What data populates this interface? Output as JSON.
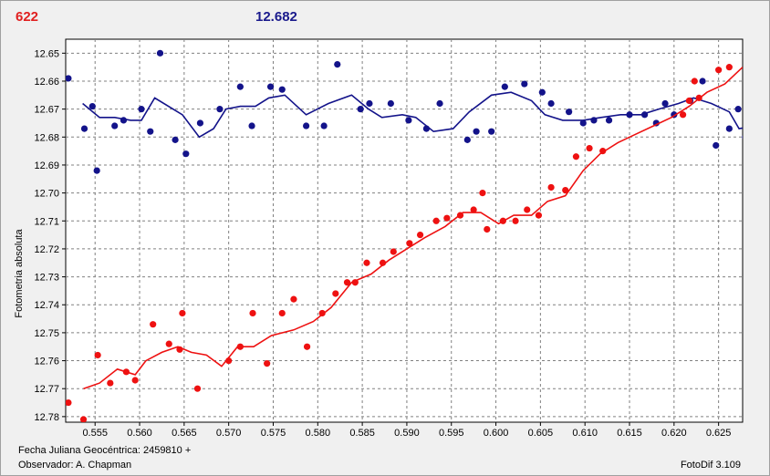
{
  "header": {
    "left_value": "622",
    "right_value": "12.682"
  },
  "footer": {
    "date_label": "Fecha Juliana Geocéntrica: 2459810 +",
    "observer_label": "Observador: A. Chapman",
    "version_label": "FotoDif 3.109"
  },
  "colors": {
    "series_red": "#ee1111",
    "series_blue": "#13138a",
    "background": "#ffffff",
    "grid": "#808080"
  },
  "chart_data": {
    "type": "scatter",
    "ylabel": "Fotometria absoluta",
    "xlabel": "",
    "xlim": [
      0.5517,
      0.6277
    ],
    "ylim": [
      12.645,
      12.782
    ],
    "y_inverted": true,
    "grid": true,
    "x_ticks": [
      "0.555",
      "0.560",
      "0.565",
      "0.570",
      "0.575",
      "0.580",
      "0.585",
      "0.590",
      "0.595",
      "0.600",
      "0.605",
      "0.610",
      "0.615",
      "0.620",
      "0.625"
    ],
    "y_ticks": [
      "12.65",
      "12.66",
      "12.67",
      "12.68",
      "12.69",
      "12.70",
      "12.71",
      "12.72",
      "12.73",
      "12.74",
      "12.75",
      "12.76",
      "12.77",
      "12.78"
    ],
    "series": [
      {
        "color": "#13138a",
        "points": [
          [
            0.552,
            12.659
          ],
          [
            0.5538,
            12.677
          ],
          [
            0.5547,
            12.669
          ],
          [
            0.5552,
            12.692
          ],
          [
            0.5572,
            12.676
          ],
          [
            0.5582,
            12.674
          ],
          [
            0.5602,
            12.67
          ],
          [
            0.5612,
            12.678
          ],
          [
            0.5623,
            12.65
          ],
          [
            0.564,
            12.681
          ],
          [
            0.5652,
            12.686
          ],
          [
            0.5668,
            12.675
          ],
          [
            0.569,
            12.67
          ],
          [
            0.5713,
            12.662
          ],
          [
            0.5726,
            12.676
          ],
          [
            0.5747,
            12.662
          ],
          [
            0.576,
            12.663
          ],
          [
            0.5787,
            12.676
          ],
          [
            0.5807,
            12.676
          ],
          [
            0.5822,
            12.654
          ],
          [
            0.5848,
            12.67
          ],
          [
            0.5858,
            12.668
          ],
          [
            0.5882,
            12.668
          ],
          [
            0.5902,
            12.674
          ],
          [
            0.5922,
            12.677
          ],
          [
            0.5937,
            12.668
          ],
          [
            0.5968,
            12.681
          ],
          [
            0.5978,
            12.678
          ],
          [
            0.5995,
            12.678
          ],
          [
            0.601,
            12.662
          ],
          [
            0.6032,
            12.661
          ],
          [
            0.6052,
            12.664
          ],
          [
            0.6062,
            12.668
          ],
          [
            0.6082,
            12.671
          ],
          [
            0.6098,
            12.675
          ],
          [
            0.611,
            12.674
          ],
          [
            0.6127,
            12.674
          ],
          [
            0.615,
            12.672
          ],
          [
            0.6167,
            12.672
          ],
          [
            0.618,
            12.675
          ],
          [
            0.619,
            12.668
          ],
          [
            0.62,
            12.672
          ],
          [
            0.6218,
            12.667
          ],
          [
            0.6232,
            12.66
          ],
          [
            0.6247,
            12.683
          ],
          [
            0.6262,
            12.677
          ],
          [
            0.6272,
            12.67
          ],
          [
            0.628,
            12.68
          ]
        ],
        "trend": [
          [
            0.5536,
            12.668
          ],
          [
            0.5555,
            12.673
          ],
          [
            0.5572,
            12.673
          ],
          [
            0.559,
            12.674
          ],
          [
            0.5602,
            12.674
          ],
          [
            0.5617,
            12.666
          ],
          [
            0.5648,
            12.672
          ],
          [
            0.5667,
            12.68
          ],
          [
            0.5683,
            12.677
          ],
          [
            0.5697,
            12.67
          ],
          [
            0.5713,
            12.669
          ],
          [
            0.573,
            12.669
          ],
          [
            0.5745,
            12.666
          ],
          [
            0.5763,
            12.665
          ],
          [
            0.5787,
            12.672
          ],
          [
            0.5812,
            12.668
          ],
          [
            0.5838,
            12.665
          ],
          [
            0.5857,
            12.67
          ],
          [
            0.5872,
            12.673
          ],
          [
            0.5895,
            12.672
          ],
          [
            0.591,
            12.673
          ],
          [
            0.593,
            12.678
          ],
          [
            0.5952,
            12.677
          ],
          [
            0.597,
            12.671
          ],
          [
            0.5995,
            12.665
          ],
          [
            0.6017,
            12.664
          ],
          [
            0.604,
            12.667
          ],
          [
            0.6055,
            12.672
          ],
          [
            0.6075,
            12.674
          ],
          [
            0.6098,
            12.674
          ],
          [
            0.6118,
            12.673
          ],
          [
            0.614,
            12.672
          ],
          [
            0.6163,
            12.672
          ],
          [
            0.6183,
            12.67
          ],
          [
            0.6205,
            12.668
          ],
          [
            0.6222,
            12.666
          ],
          [
            0.6242,
            12.668
          ],
          [
            0.6262,
            12.671
          ],
          [
            0.6273,
            12.677
          ],
          [
            0.6292,
            12.676
          ]
        ]
      },
      {
        "color": "#ee1111",
        "points": [
          [
            0.552,
            12.775
          ],
          [
            0.5537,
            12.781
          ],
          [
            0.5553,
            12.758
          ],
          [
            0.5567,
            12.768
          ],
          [
            0.5585,
            12.764
          ],
          [
            0.5595,
            12.767
          ],
          [
            0.5615,
            12.747
          ],
          [
            0.5633,
            12.754
          ],
          [
            0.5645,
            12.756
          ],
          [
            0.5648,
            12.743
          ],
          [
            0.5665,
            12.77
          ],
          [
            0.57,
            12.76
          ],
          [
            0.5713,
            12.755
          ],
          [
            0.5727,
            12.743
          ],
          [
            0.5743,
            12.761
          ],
          [
            0.576,
            12.743
          ],
          [
            0.5773,
            12.738
          ],
          [
            0.5788,
            12.755
          ],
          [
            0.5805,
            12.743
          ],
          [
            0.582,
            12.736
          ],
          [
            0.5833,
            12.732
          ],
          [
            0.5842,
            12.732
          ],
          [
            0.5855,
            12.725
          ],
          [
            0.5873,
            12.725
          ],
          [
            0.5885,
            12.721
          ],
          [
            0.5903,
            12.718
          ],
          [
            0.5915,
            12.715
          ],
          [
            0.5933,
            12.71
          ],
          [
            0.5945,
            12.709
          ],
          [
            0.596,
            12.708
          ],
          [
            0.5975,
            12.706
          ],
          [
            0.5985,
            12.7
          ],
          [
            0.599,
            12.713
          ],
          [
            0.6008,
            12.71
          ],
          [
            0.6022,
            12.71
          ],
          [
            0.6035,
            12.706
          ],
          [
            0.6048,
            12.708
          ],
          [
            0.6062,
            12.698
          ],
          [
            0.6078,
            12.699
          ],
          [
            0.609,
            12.687
          ],
          [
            0.6105,
            12.684
          ],
          [
            0.612,
            12.685
          ],
          [
            0.621,
            12.672
          ],
          [
            0.6217,
            12.667
          ],
          [
            0.6223,
            12.66
          ],
          [
            0.6228,
            12.666
          ],
          [
            0.625,
            12.656
          ],
          [
            0.6262,
            12.655
          ]
        ],
        "trend": [
          [
            0.5537,
            12.77
          ],
          [
            0.5555,
            12.768
          ],
          [
            0.5575,
            12.763
          ],
          [
            0.5595,
            12.765
          ],
          [
            0.5607,
            12.76
          ],
          [
            0.5625,
            12.757
          ],
          [
            0.5643,
            12.755
          ],
          [
            0.5658,
            12.757
          ],
          [
            0.5675,
            12.758
          ],
          [
            0.5692,
            12.762
          ],
          [
            0.571,
            12.755
          ],
          [
            0.5728,
            12.755
          ],
          [
            0.5748,
            12.751
          ],
          [
            0.5773,
            12.749
          ],
          [
            0.5795,
            12.746
          ],
          [
            0.5815,
            12.741
          ],
          [
            0.5838,
            12.732
          ],
          [
            0.586,
            12.729
          ],
          [
            0.588,
            12.724
          ],
          [
            0.59,
            12.72
          ],
          [
            0.592,
            12.716
          ],
          [
            0.5943,
            12.712
          ],
          [
            0.5963,
            12.707
          ],
          [
            0.5983,
            12.707
          ],
          [
            0.6003,
            12.711
          ],
          [
            0.602,
            12.708
          ],
          [
            0.604,
            12.708
          ],
          [
            0.6058,
            12.703
          ],
          [
            0.6078,
            12.701
          ],
          [
            0.6098,
            12.692
          ],
          [
            0.6117,
            12.686
          ],
          [
            0.6137,
            12.682
          ],
          [
            0.6157,
            12.679
          ],
          [
            0.6177,
            12.676
          ],
          [
            0.6197,
            12.673
          ],
          [
            0.6217,
            12.669
          ],
          [
            0.6237,
            12.664
          ],
          [
            0.6257,
            12.661
          ],
          [
            0.6277,
            12.655
          ]
        ]
      }
    ]
  }
}
